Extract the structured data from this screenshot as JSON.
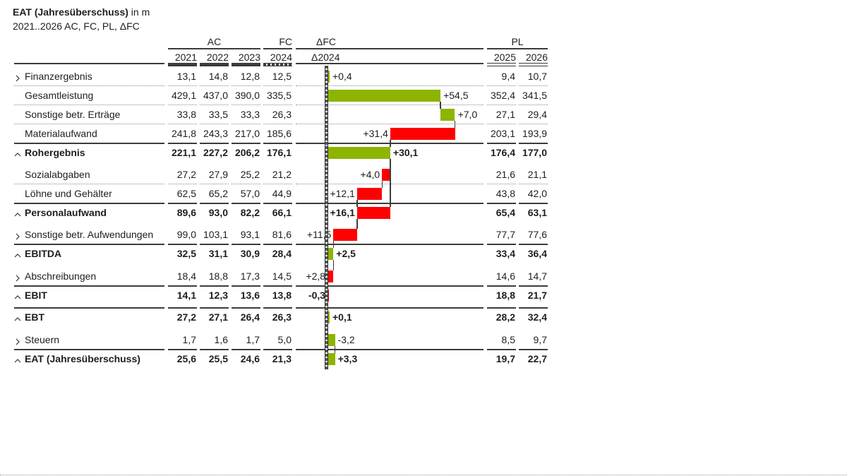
{
  "title": {
    "bold": "EAT (Jahresüberschuss)",
    "suffix": " in m",
    "subtitle": "2021..2026 AC, FC, PL, ΔFC"
  },
  "header": {
    "groups": {
      "ac": "AC",
      "fc": "FC",
      "delta": "ΔFC",
      "pl": "PL"
    },
    "years": {
      "ac2021": "2021",
      "ac2022": "2022",
      "ac2023": "2023",
      "fc2024": "2024",
      "delta": "Δ2024",
      "pl2025": "2025",
      "pl2026": "2026"
    }
  },
  "rows": [
    {
      "label": "Finanzergebnis",
      "icon": "chevron-right",
      "type": "detail",
      "line_above": "none",
      "values": {
        "ac2021": "13,1",
        "ac2022": "14,8",
        "ac2023": "12,8",
        "fc2024": "12,5",
        "pl2025": "9,4",
        "pl2026": "10,7"
      },
      "delta_label": "+0,4",
      "label_side": "right"
    },
    {
      "label": "Gesamtleistung",
      "icon": "none",
      "type": "detail",
      "line_above": "dotted",
      "values": {
        "ac2021": "429,1",
        "ac2022": "437,0",
        "ac2023": "390,0",
        "fc2024": "335,5",
        "pl2025": "352,4",
        "pl2026": "341,5"
      },
      "delta_label": "+54,5",
      "label_side": "right"
    },
    {
      "label": "Sonstige betr. Erträge",
      "icon": "none",
      "type": "detail",
      "line_above": "dotted",
      "values": {
        "ac2021": "33,8",
        "ac2022": "33,5",
        "ac2023": "33,3",
        "fc2024": "26,3",
        "pl2025": "27,1",
        "pl2026": "29,4"
      },
      "delta_label": "+7,0",
      "label_side": "right"
    },
    {
      "label": "Materialaufwand",
      "icon": "none",
      "type": "detail",
      "line_above": "dotted",
      "values": {
        "ac2021": "241,8",
        "ac2022": "243,3",
        "ac2023": "217,0",
        "fc2024": "185,6",
        "pl2025": "203,1",
        "pl2026": "193,9"
      },
      "delta_label": "+31,4",
      "label_side": "left"
    },
    {
      "label": "Rohergebnis",
      "icon": "chevron-up",
      "type": "sum",
      "line_above": "solid",
      "values": {
        "ac2021": "221,1",
        "ac2022": "227,2",
        "ac2023": "206,2",
        "fc2024": "176,1",
        "pl2025": "176,4",
        "pl2026": "177,0"
      },
      "delta_label": "+30,1",
      "label_side": "right"
    },
    {
      "label": "Sozialabgaben",
      "icon": "none",
      "type": "detail",
      "line_above": "none",
      "values": {
        "ac2021": "27,2",
        "ac2022": "27,9",
        "ac2023": "25,2",
        "fc2024": "21,2",
        "pl2025": "21,6",
        "pl2026": "21,1"
      },
      "delta_label": "+4,0",
      "label_side": "left"
    },
    {
      "label": "Löhne und Gehälter",
      "icon": "none",
      "type": "detail",
      "line_above": "dotted",
      "values": {
        "ac2021": "62,5",
        "ac2022": "65,2",
        "ac2023": "57,0",
        "fc2024": "44,9",
        "pl2025": "43,8",
        "pl2026": "42,0"
      },
      "delta_label": "+12,1",
      "label_side": "left"
    },
    {
      "label": "Personalaufwand",
      "icon": "chevron-up",
      "type": "sum",
      "line_above": "solid",
      "values": {
        "ac2021": "89,6",
        "ac2022": "93,0",
        "ac2023": "82,2",
        "fc2024": "66,1",
        "pl2025": "65,4",
        "pl2026": "63,1"
      },
      "delta_label": "+16,1",
      "label_side": "left"
    },
    {
      "label": "Sonstige betr. Aufwendungen",
      "icon": "chevron-right",
      "type": "detail",
      "line_above": "none",
      "values": {
        "ac2021": "99,0",
        "ac2022": "103,1",
        "ac2023": "93,1",
        "fc2024": "81,6",
        "pl2025": "77,7",
        "pl2026": "77,6"
      },
      "delta_label": "+11,5",
      "label_side": "left"
    },
    {
      "label": "EBITDA",
      "icon": "chevron-up",
      "type": "sum",
      "line_above": "solid",
      "values": {
        "ac2021": "32,5",
        "ac2022": "31,1",
        "ac2023": "30,9",
        "fc2024": "28,4",
        "pl2025": "33,4",
        "pl2026": "36,4"
      },
      "delta_label": "+2,5",
      "label_side": "right"
    },
    {
      "label": "Abschreibungen",
      "icon": "chevron-right",
      "type": "detail",
      "line_above": "none",
      "values": {
        "ac2021": "18,4",
        "ac2022": "18,8",
        "ac2023": "17,3",
        "fc2024": "14,5",
        "pl2025": "14,6",
        "pl2026": "14,7"
      },
      "delta_label": "+2,8",
      "label_side": "left"
    },
    {
      "label": "EBIT",
      "icon": "chevron-up",
      "type": "sum",
      "line_above": "solid",
      "values": {
        "ac2021": "14,1",
        "ac2022": "12,3",
        "ac2023": "13,6",
        "fc2024": "13,8",
        "pl2025": "18,8",
        "pl2026": "21,7"
      },
      "delta_label": "-0,3",
      "label_side": "left"
    },
    {
      "label": "EBT",
      "icon": "chevron-up",
      "type": "sum",
      "line_above": "solid",
      "values": {
        "ac2021": "27,2",
        "ac2022": "27,1",
        "ac2023": "26,4",
        "fc2024": "26,3",
        "pl2025": "28,2",
        "pl2026": "32,4"
      },
      "delta_label": "+0,1",
      "label_side": "right"
    },
    {
      "label": "Steuern",
      "icon": "chevron-right",
      "type": "detail",
      "line_above": "none",
      "values": {
        "ac2021": "1,7",
        "ac2022": "1,6",
        "ac2023": "1,7",
        "fc2024": "5,0",
        "pl2025": "8,5",
        "pl2026": "9,7"
      },
      "delta_label": "-3,2",
      "label_side": "right"
    },
    {
      "label": "EAT (Jahresüberschuss)",
      "icon": "chevron-up",
      "type": "sum",
      "line_above": "solid",
      "values": {
        "ac2021": "25,6",
        "ac2022": "25,5",
        "ac2023": "24,6",
        "fc2024": "21,3",
        "pl2025": "19,7",
        "pl2026": "22,7"
      },
      "delta_label": "+3,3",
      "label_side": "right"
    }
  ],
  "colors": {
    "positive": "#8CB400",
    "negative": "#FF0000",
    "line": "#3C3C3C",
    "text": "#1E1E1E"
  },
  "chart_data": {
    "type": "bar",
    "subtype": "waterfall",
    "title": "EAT (Jahresüberschuss) in m",
    "subtitle": "2021..2026 AC, FC, PL, ΔFC",
    "column_header": "Δ2024",
    "categories": [
      "Finanzergebnis",
      "Gesamtleistung",
      "Sonstige betr. Erträge",
      "Materialaufwand",
      "Rohergebnis",
      "Sozialabgaben",
      "Löhne und Gehälter",
      "Personalaufwand",
      "Sonstige betr. Aufwendungen",
      "EBITDA",
      "Abschreibungen",
      "EBIT",
      "EBT",
      "Steuern",
      "EAT (Jahresüberschuss)"
    ],
    "values": [
      0.4,
      54.5,
      7.0,
      31.4,
      30.1,
      4.0,
      12.1,
      16.1,
      11.5,
      2.5,
      2.8,
      -0.3,
      0.1,
      -3.2,
      3.3
    ],
    "bars": [
      {
        "start": 0,
        "end": 0.4,
        "effect": "positive"
      },
      {
        "start": 0,
        "end": 54.5,
        "effect": "positive"
      },
      {
        "start": 54.5,
        "end": 61.5,
        "effect": "positive"
      },
      {
        "start": 30.1,
        "end": 61.5,
        "effect": "negative"
      },
      {
        "start": 0,
        "end": 30.1,
        "effect": "positive"
      },
      {
        "start": 26.1,
        "end": 30.1,
        "effect": "negative"
      },
      {
        "start": 14.0,
        "end": 26.1,
        "effect": "negative"
      },
      {
        "start": 14.0,
        "end": 30.1,
        "effect": "negative"
      },
      {
        "start": 2.5,
        "end": 14.0,
        "effect": "negative"
      },
      {
        "start": 0,
        "end": 2.5,
        "effect": "positive"
      },
      {
        "start": -0.3,
        "end": 2.5,
        "effect": "negative"
      },
      {
        "start": -0.3,
        "end": 0,
        "effect": "negative"
      },
      {
        "start": 0,
        "end": 0.1,
        "effect": "positive"
      },
      {
        "start": 0.1,
        "end": 3.3,
        "effect": "positive"
      },
      {
        "start": 0,
        "end": 3.3,
        "effect": "positive"
      }
    ],
    "connectors": [
      {
        "x": 54.5,
        "from": 1,
        "to": 2
      },
      {
        "x": 61.5,
        "from": 2,
        "to": 3
      },
      {
        "x": 30.1,
        "from": 3,
        "to": 4
      },
      {
        "x": 30.1,
        "from": 4,
        "to": 7
      },
      {
        "x": 26.1,
        "from": 5,
        "to": 6
      },
      {
        "x": 14.0,
        "from": 6,
        "to": 7
      },
      {
        "x": 14.0,
        "from": 7,
        "to": 8
      },
      {
        "x": 2.5,
        "from": 8,
        "to": 9
      },
      {
        "x": 2.5,
        "from": 9,
        "to": 10
      },
      {
        "x": 3.3,
        "from": 13,
        "to": 14
      }
    ],
    "table_series": [
      {
        "name": "AC 2021",
        "values": [
          13.1,
          429.1,
          33.8,
          241.8,
          221.1,
          27.2,
          62.5,
          89.6,
          99.0,
          32.5,
          18.4,
          14.1,
          27.2,
          1.7,
          25.6
        ]
      },
      {
        "name": "AC 2022",
        "values": [
          14.8,
          437.0,
          33.5,
          243.3,
          227.2,
          27.9,
          65.2,
          93.0,
          103.1,
          31.1,
          18.8,
          12.3,
          27.1,
          1.6,
          25.5
        ]
      },
      {
        "name": "AC 2023",
        "values": [
          12.8,
          390.0,
          33.3,
          217.0,
          206.2,
          25.2,
          57.0,
          82.2,
          93.1,
          30.9,
          17.3,
          13.6,
          26.4,
          1.7,
          24.6
        ]
      },
      {
        "name": "FC 2024",
        "values": [
          12.5,
          335.5,
          26.3,
          185.6,
          176.1,
          21.2,
          44.9,
          66.1,
          81.6,
          28.4,
          14.5,
          13.8,
          26.3,
          5.0,
          21.3
        ]
      },
      {
        "name": "PL 2025",
        "values": [
          9.4,
          352.4,
          27.1,
          203.1,
          176.4,
          21.6,
          43.8,
          65.4,
          77.7,
          33.4,
          14.6,
          18.8,
          28.2,
          8.5,
          19.7
        ]
      },
      {
        "name": "PL 2026",
        "values": [
          10.7,
          341.5,
          29.4,
          193.9,
          177.0,
          21.1,
          42.0,
          63.1,
          77.6,
          36.4,
          14.7,
          21.7,
          32.4,
          9.7,
          22.7
        ]
      }
    ],
    "xlabel": "",
    "ylabel": "",
    "grid": false,
    "legend": "none"
  }
}
